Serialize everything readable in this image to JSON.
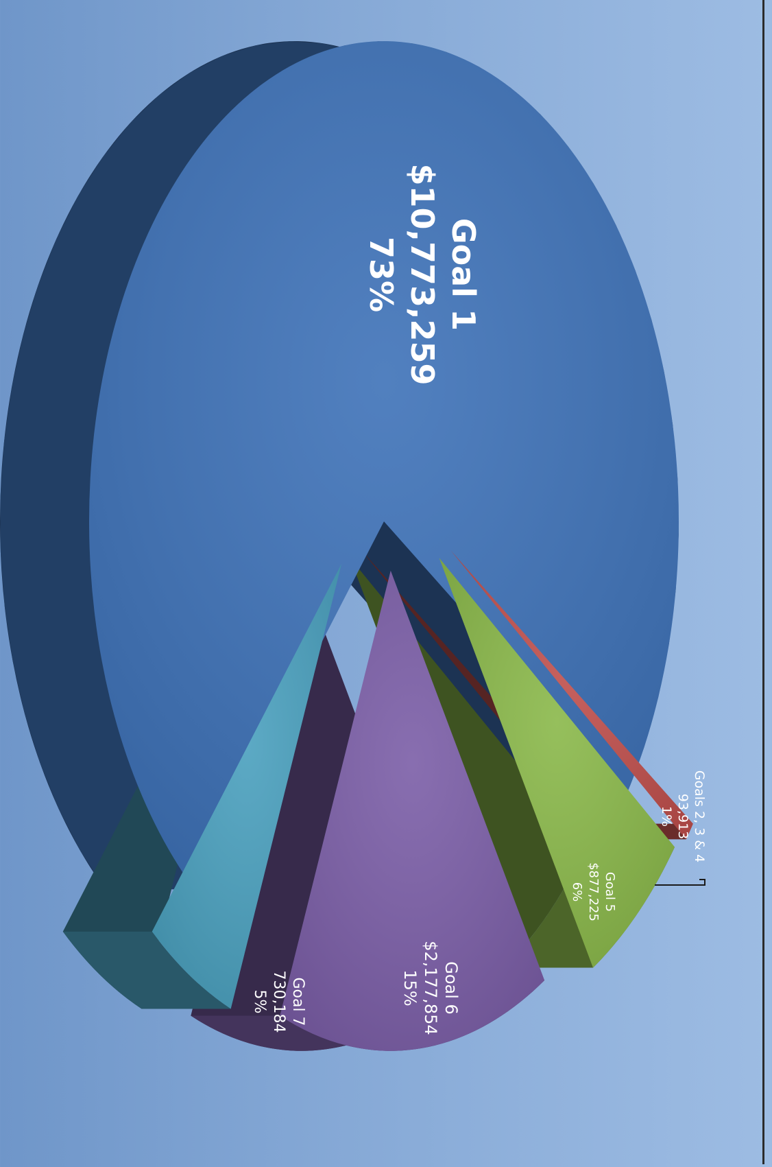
{
  "chart_data": {
    "type": "pie",
    "variant": "3d-exploded",
    "orientation": "rotated 90° clockwise",
    "title": "",
    "slices": [
      {
        "label": "Goal 1",
        "value": 10773259,
        "value_text": "$10,773,259",
        "percent": 73,
        "percent_text": "73%",
        "color": "#3e72b8"
      },
      {
        "label": "Goals 2, 3 & 4",
        "value": 93913,
        "value_text": "93,913",
        "percent": 1,
        "percent_text": "1%",
        "color": "#c0504d"
      },
      {
        "label": "Goal 5",
        "value": 877225,
        "value_text": "$877,225",
        "percent": 6,
        "percent_text": "6%",
        "color": "#8ab84a"
      },
      {
        "label": "Goal 6",
        "value": 2177854,
        "value_text": "$2,177,854",
        "percent": 15,
        "percent_text": "15%",
        "color": "#7b5ea7"
      },
      {
        "label": "Goal  7",
        "value": 730184,
        "value_text": "730,184",
        "percent": 5,
        "percent_text": "5%",
        "color": "#4aa0be"
      }
    ]
  }
}
